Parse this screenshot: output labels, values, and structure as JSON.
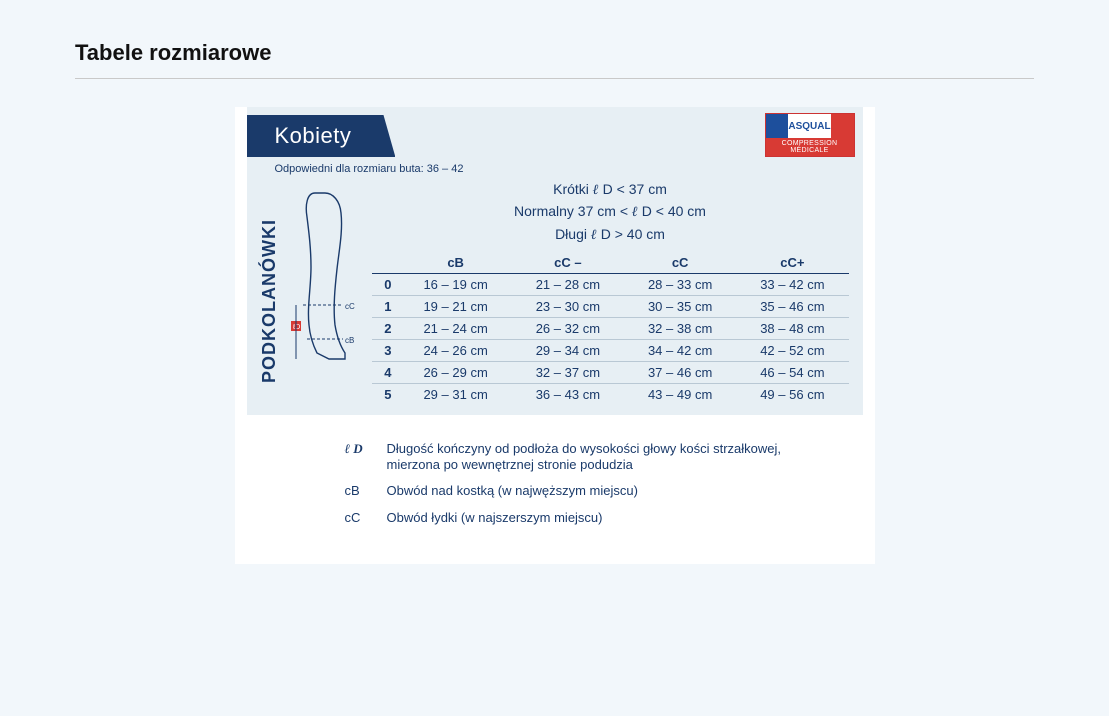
{
  "page": {
    "title": "Tabele rozmiarowe"
  },
  "badge": {
    "brand": "ASQUAL",
    "sub": "COMPRESSION MÉDICALE"
  },
  "panel": {
    "tab_label": "Kobiety",
    "shoe_note": "Odpowiedni dla rozmiaru buta: 36 – 42",
    "side_label": "PODKOLANÓWKI"
  },
  "lengths": {
    "line1_pre": "Krótki ",
    "line1_sym": "ℓ",
    "line1_post": " D < 37 cm",
    "line2_pre": "Normalny 37 cm < ",
    "line2_sym": "ℓ",
    "line2_post": " D < 40 cm",
    "line3_pre": "Długi ",
    "line3_sym": "ℓ",
    "line3_post": " D > 40 cm"
  },
  "table": {
    "headers": [
      "cB",
      "cC –",
      "cC",
      "cC+"
    ],
    "rows": [
      {
        "idx": "0",
        "cells": [
          "16 – 19 cm",
          "21 – 28 cm",
          "28 – 33 cm",
          "33 – 42 cm"
        ]
      },
      {
        "idx": "1",
        "cells": [
          "19 – 21 cm",
          "23 – 30 cm",
          "30 – 35 cm",
          "35 – 46 cm"
        ]
      },
      {
        "idx": "2",
        "cells": [
          "21 – 24 cm",
          "26 – 32 cm",
          "32 – 38 cm",
          "38 – 48 cm"
        ]
      },
      {
        "idx": "3",
        "cells": [
          "24 – 26 cm",
          "29 – 34 cm",
          "34 – 42 cm",
          "42 – 52 cm"
        ]
      },
      {
        "idx": "4",
        "cells": [
          "26 – 29 cm",
          "32 – 37 cm",
          "37 – 46 cm",
          "46 – 54 cm"
        ]
      },
      {
        "idx": "5",
        "cells": [
          "29 – 31 cm",
          "36 – 43 cm",
          "43 – 49 cm",
          "49 – 56 cm"
        ]
      }
    ]
  },
  "legend": {
    "ld_key": "ℓ D",
    "ld_text": "Długość kończyny od podłoża do wysokości głowy kości strzałkowej, mierzona po wewnętrznej stronie podudzia",
    "cb_key": "cB",
    "cb_text": "Obwód nad kostką (w najwęższym miejscu)",
    "cc_key": "cC",
    "cc_text": "Obwód łydki (w najszerszym miejscu)"
  },
  "diagram": {
    "cc_label": "cC",
    "cb_label": "cB",
    "ld_label": "ℓD"
  },
  "colors": {
    "brand_navy": "#1a3a6a",
    "panel_bg": "#e7eff4",
    "page_bg": "#f2f7fb",
    "badge_red": "#d83a34",
    "badge_blue": "#1d4f9c"
  }
}
